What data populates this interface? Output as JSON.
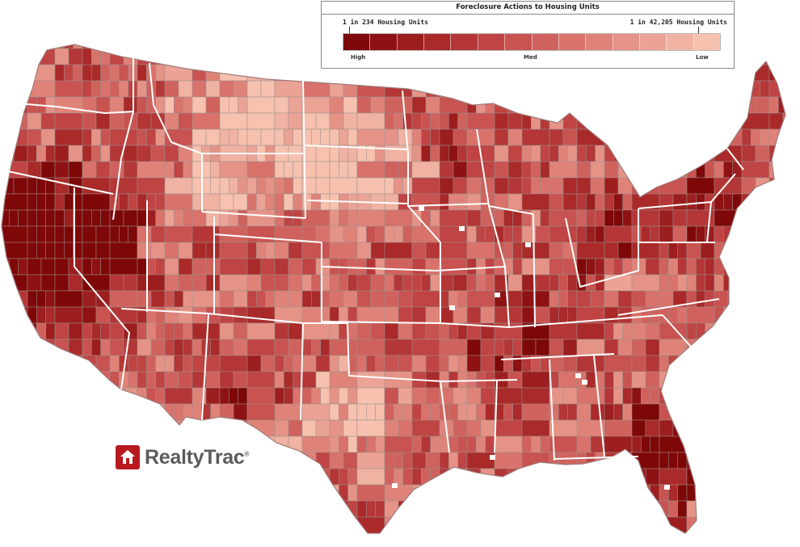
{
  "legend": {
    "title": "Foreclosure Actions to Housing Units",
    "high_end": "1 in 234 Housing Units",
    "low_end": "1 in 42,205 Housing Units",
    "scale_high": "High",
    "scale_med": "Med",
    "scale_low": "Low",
    "ramp_colors": [
      "#7e0708",
      "#8e1213",
      "#9c1e1e",
      "#a92a29",
      "#b43636",
      "#bf4443",
      "#c85350",
      "#d0625d",
      "#d8726b",
      "#df8379",
      "#e59387",
      "#eba395",
      "#f0b2a2",
      "#f6c1af"
    ]
  },
  "brand": {
    "name": "RealtyTrac",
    "reg_mark": "®",
    "accent": "#b8191f"
  },
  "map": {
    "background": "#ffffff",
    "state_border": "#ffffff",
    "county_border": "#9a8f8f"
  }
}
